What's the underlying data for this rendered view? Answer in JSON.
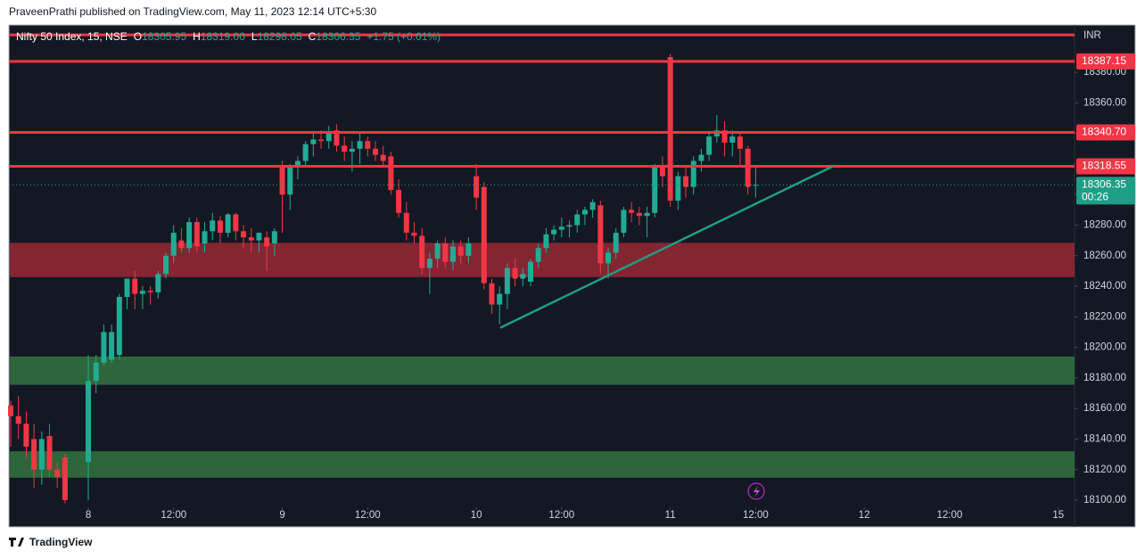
{
  "publisher_line": "PraveenPrathi published on TradingView.com, May 11, 2023 12:14 UTC+5:30",
  "footer_brand": "TradingView",
  "chart_data": {
    "type": "candlestick",
    "legend": {
      "symbol": "Nifty 50 Index, 15, NSE",
      "ohlc": [
        {
          "key": "O",
          "value": "18305.95"
        },
        {
          "key": "H",
          "value": "18319.00"
        },
        {
          "key": "L",
          "value": "18298.05"
        },
        {
          "key": "C",
          "value": "18306.35"
        }
      ],
      "change": "+1.75 (+0.01%)"
    },
    "currency": "INR",
    "xlim": [
      -0.23,
      137.1
    ],
    "xticks": [
      {
        "value": 10,
        "label": "8"
      },
      {
        "value": 21,
        "label": "12:00"
      },
      {
        "value": 35,
        "label": "9"
      },
      {
        "value": 46,
        "label": "12:00"
      },
      {
        "value": 60,
        "label": "10"
      },
      {
        "value": 71,
        "label": "12:00"
      },
      {
        "value": 85,
        "label": "11"
      },
      {
        "value": 96,
        "label": "12:00"
      },
      {
        "value": 110,
        "label": "12"
      },
      {
        "value": 121,
        "label": "12:00"
      },
      {
        "value": 135,
        "label": "15"
      }
    ],
    "ylim": [
      18082.5,
      18411
    ],
    "yticks": [
      {
        "value": 18100,
        "label": "18100.00"
      },
      {
        "value": 18120,
        "label": "18120.00"
      },
      {
        "value": 18140,
        "label": "18140.00"
      },
      {
        "value": 18160,
        "label": "18160.00"
      },
      {
        "value": 18180,
        "label": "18180.00"
      },
      {
        "value": 18200,
        "label": "18200.00"
      },
      {
        "value": 18220,
        "label": "18220.00"
      },
      {
        "value": 18240,
        "label": "18240.00"
      },
      {
        "value": 18260,
        "label": "18260.00"
      },
      {
        "value": 18280,
        "label": "18280.00"
      },
      {
        "value": 18300,
        "label": "18300.00"
      },
      {
        "value": 18320,
        "label": "18320.00"
      },
      {
        "value": 18340,
        "label": "18340.00"
      },
      {
        "value": 18360,
        "label": "18360.00"
      },
      {
        "value": 18380,
        "label": "18380.00"
      }
    ],
    "up_color": "#22ab94",
    "down_color": "#f23645",
    "series": [
      {
        "x": [
          0,
          1,
          2,
          3,
          4,
          5,
          6,
          7,
          10,
          11,
          12,
          13,
          14,
          15,
          16,
          17,
          18,
          19,
          20,
          21,
          22,
          23,
          24,
          25,
          26,
          27,
          28,
          29,
          30,
          31,
          32,
          33,
          34,
          35,
          36,
          37,
          38,
          39,
          40,
          41,
          42,
          43,
          44,
          45,
          46,
          47,
          48,
          49,
          50,
          51,
          52,
          53,
          54,
          55,
          56,
          57,
          58,
          59,
          60,
          61,
          62,
          63,
          64,
          65,
          66,
          67,
          68,
          69,
          70,
          71,
          72,
          73,
          74,
          75,
          76,
          77,
          78,
          79,
          80,
          81,
          82,
          83,
          84,
          85,
          86,
          87,
          88,
          89,
          90,
          91,
          92,
          93,
          94,
          95,
          96
        ],
        "open": [
          18162,
          18155,
          18150,
          18140,
          18120,
          18142,
          18120,
          18128,
          18125,
          18178,
          18190,
          18192,
          18195,
          18233,
          18245,
          18235,
          18237,
          18236,
          18248,
          18260,
          18270,
          18265,
          18282,
          18268,
          18276,
          18283,
          18275,
          18287,
          18276,
          18272,
          18270,
          18272,
          18268,
          18318,
          18300,
          18318,
          18322,
          18333,
          18336,
          18335,
          18342,
          18332,
          18328,
          18330,
          18335,
          18330,
          18326,
          18325,
          18303,
          18288,
          18275,
          18273,
          18252,
          18258,
          18268,
          18256,
          18266,
          18260,
          18312,
          18305,
          18242,
          18228,
          18235,
          18252,
          18245,
          18243,
          18256,
          18265,
          18274,
          18277,
          18279,
          18280,
          18287,
          18290,
          18293,
          18255,
          18262,
          18275,
          18290,
          18288,
          18286,
          18288,
          18318,
          18390,
          18296,
          18312,
          18305,
          18322,
          18326,
          18338,
          18342,
          18334,
          18338,
          18330,
          18305.95
        ],
        "high": [
          18165,
          18168,
          18158,
          18150,
          18145,
          18150,
          18125,
          18130,
          18195,
          18195,
          18215,
          18215,
          18235,
          18245,
          18250,
          18240,
          18240,
          18250,
          18262,
          18280,
          18278,
          18285,
          18285,
          18282,
          18288,
          18286,
          18288,
          18288,
          18280,
          18278,
          18275,
          18276,
          18278,
          18322,
          18320,
          18325,
          18335,
          18340,
          18342,
          18345,
          18346,
          18338,
          18335,
          18340,
          18338,
          18335,
          18332,
          18328,
          18310,
          18295,
          18282,
          18278,
          18262,
          18270,
          18272,
          18270,
          18270,
          18272,
          18320,
          18308,
          18245,
          18240,
          18255,
          18258,
          18252,
          18258,
          18268,
          18278,
          18280,
          18285,
          18283,
          18290,
          18292,
          18297,
          18296,
          18265,
          18278,
          18292,
          18295,
          18292,
          18292,
          18320,
          18325,
          18392,
          18315,
          18318,
          18325,
          18330,
          18340,
          18352,
          18348,
          18342,
          18340,
          18332,
          18319
        ],
        "low": [
          18135,
          18140,
          18128,
          18108,
          18110,
          18115,
          18108,
          18098,
          18100,
          18170,
          18188,
          18190,
          18192,
          18225,
          18225,
          18225,
          18228,
          18232,
          18245,
          18255,
          18262,
          18262,
          18262,
          18262,
          18270,
          18268,
          18272,
          18270,
          18265,
          18262,
          18262,
          18250,
          18260,
          18275,
          18290,
          18310,
          18318,
          18325,
          18330,
          18330,
          18328,
          18322,
          18315,
          18320,
          18325,
          18322,
          18318,
          18300,
          18285,
          18270,
          18268,
          18248,
          18235,
          18252,
          18252,
          18250,
          18255,
          18255,
          18290,
          18238,
          18222,
          18215,
          18225,
          18240,
          18240,
          18240,
          18252,
          18262,
          18270,
          18272,
          18272,
          18275,
          18280,
          18285,
          18248,
          18245,
          18258,
          18272,
          18282,
          18280,
          18272,
          18285,
          18305,
          18292,
          18290,
          18298,
          18300,
          18315,
          18322,
          18334,
          18325,
          18325,
          18318,
          18300,
          18298.05
        ],
        "close": [
          18155,
          18150,
          18135,
          18120,
          18140,
          18120,
          18115,
          18100,
          18178,
          18190,
          18210,
          18210,
          18233,
          18245,
          18235,
          18237,
          18236,
          18248,
          18260,
          18275,
          18265,
          18282,
          18266,
          18276,
          18283,
          18275,
          18287,
          18276,
          18272,
          18270,
          18275,
          18266,
          18276,
          18300,
          18318,
          18322,
          18333,
          18336,
          18335,
          18340,
          18332,
          18328,
          18330,
          18335,
          18330,
          18326,
          18322,
          18303,
          18288,
          18275,
          18273,
          18252,
          18258,
          18268,
          18256,
          18266,
          18260,
          18268,
          18298,
          18242,
          18228,
          18235,
          18252,
          18245,
          18248,
          18256,
          18265,
          18274,
          18277,
          18279,
          18280,
          18287,
          18290,
          18295,
          18255,
          18262,
          18275,
          18290,
          18288,
          18286,
          18288,
          18318,
          18312,
          18296,
          18312,
          18305,
          18322,
          18326,
          18338,
          18342,
          18334,
          18338,
          18330,
          18305,
          18306.35
        ]
      }
    ],
    "zones": [
      {
        "from": 18246,
        "to": 18268.4,
        "color": "#8a2634"
      },
      {
        "from": 18175.5,
        "to": 18194,
        "color": "#2e6a3c"
      },
      {
        "from": 18114.7,
        "to": 18132,
        "color": "#2e6a3c"
      }
    ],
    "hlines": [
      {
        "value": 18404.5,
        "color": "#f23645"
      },
      {
        "value": 18387.15,
        "label": "18387.15",
        "color": "#f23645"
      },
      {
        "value": 18340.7,
        "label": "18340.70",
        "color": "#f23645"
      },
      {
        "value": 18318.55,
        "label": "18318.55",
        "color": "#f23645"
      }
    ],
    "trendline": {
      "x": [
        63.1,
        106
      ],
      "y": [
        18212.8,
        18318.6
      ],
      "color": "#1f9c86"
    },
    "last_price": {
      "value": 18306.35,
      "label": "18306.35",
      "countdown": "00:26",
      "color": "#1e9e86"
    }
  }
}
